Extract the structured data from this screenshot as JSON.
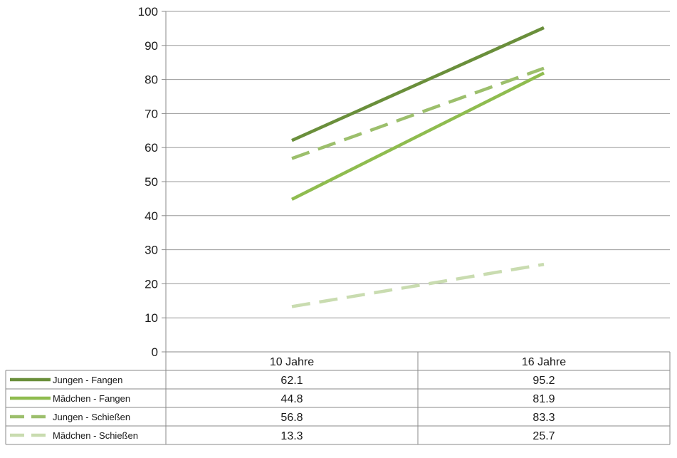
{
  "chart_data": {
    "type": "line",
    "title": "",
    "xlabel": "",
    "ylabel": "",
    "categories": [
      "10 Jahre",
      "16 Jahre"
    ],
    "ylim": [
      0,
      100
    ],
    "yticks": [
      0,
      10,
      20,
      30,
      40,
      50,
      60,
      70,
      80,
      90,
      100
    ],
    "grid": true,
    "legend": "data-table-left",
    "series": [
      {
        "name": "Jungen - Fangen",
        "values": [
          62.1,
          95.2
        ],
        "value_labels": [
          "62.1",
          "95.2"
        ],
        "color": "#6a8f3b",
        "dash": "solid"
      },
      {
        "name": "Mädchen - Fangen",
        "values": [
          44.8,
          81.9
        ],
        "value_labels": [
          "44.8",
          "81.9"
        ],
        "color": "#8fbc4f",
        "dash": "solid"
      },
      {
        "name": "Jungen - Schießen",
        "values": [
          56.8,
          83.3
        ],
        "value_labels": [
          "56.8",
          "83.3"
        ],
        "color": "#9cbf6c",
        "dash": "dashed"
      },
      {
        "name": "Mädchen - Schießen",
        "values": [
          13.3,
          25.7
        ],
        "value_labels": [
          "13.3",
          "25.7"
        ],
        "color": "#c9dcb0",
        "dash": "dashed"
      }
    ]
  }
}
